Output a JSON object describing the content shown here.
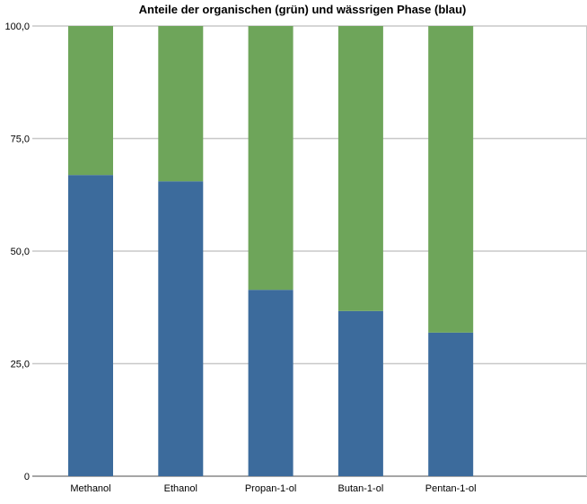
{
  "chart_data": {
    "type": "bar",
    "stacked": true,
    "title": "Anteile der organischen (grün) und wässrigen Phase (blau)",
    "xlabel": "",
    "ylabel": "",
    "categories": [
      "Methanol",
      "Ethanol",
      "Propan-1-ol",
      "Butan-1-ol",
      "Pentan-1-ol"
    ],
    "series": [
      {
        "color": "#3c6b9c",
        "values": [
          66.9,
          65.5,
          41.4,
          36.7,
          31.9
        ]
      },
      {
        "color": "#6ea55a",
        "values": [
          33.1,
          34.5,
          58.6,
          63.3,
          68.1
        ]
      }
    ],
    "ylim": [
      0,
      100
    ],
    "yticks": [
      "0",
      "25,0",
      "50,0",
      "75,0",
      "100,0"
    ],
    "ytick_values": [
      0,
      25,
      50,
      75,
      100
    ],
    "grid": true,
    "legend": "none"
  }
}
